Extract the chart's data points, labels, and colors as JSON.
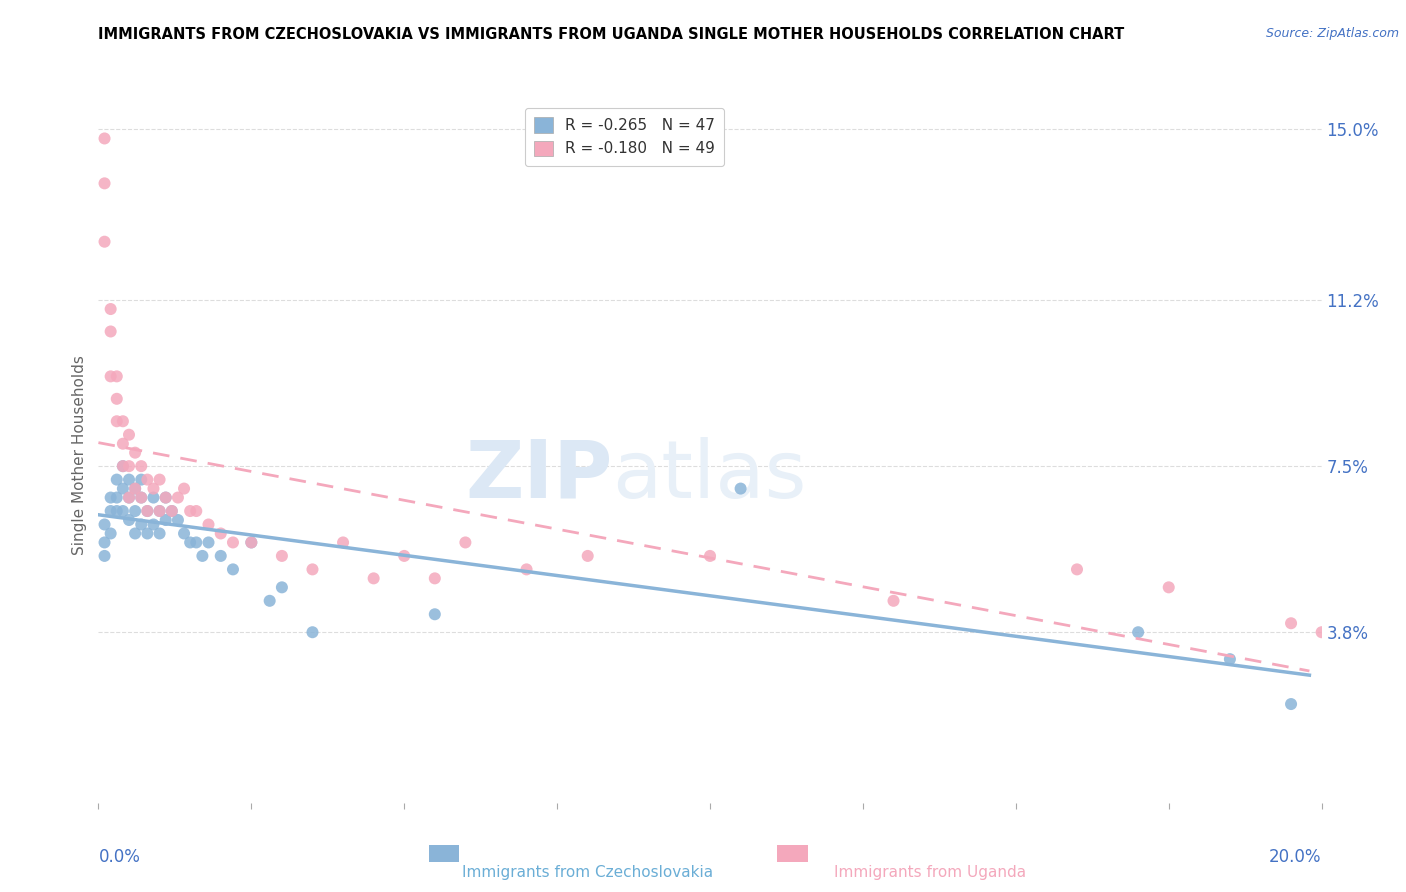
{
  "title": "IMMIGRANTS FROM CZECHOSLOVAKIA VS IMMIGRANTS FROM UGANDA SINGLE MOTHER HOUSEHOLDS CORRELATION CHART",
  "source": "Source: ZipAtlas.com",
  "ylabel": "Single Mother Households",
  "xlabel_blue": "Immigrants from Czechoslovakia",
  "xlabel_pink": "Immigrants from Uganda",
  "legend_blue_R": "R = -0.265",
  "legend_blue_N": "N = 47",
  "legend_pink_R": "R = -0.180",
  "legend_pink_N": "N = 49",
  "xlim": [
    0.0,
    0.2
  ],
  "ylim": [
    0.0,
    0.155
  ],
  "yticks": [
    0.038,
    0.075,
    0.112,
    0.15
  ],
  "ytick_labels": [
    "3.8%",
    "7.5%",
    "11.2%",
    "15.0%"
  ],
  "xticks": [
    0.0,
    0.025,
    0.05,
    0.075,
    0.1,
    0.125,
    0.15,
    0.175,
    0.2
  ],
  "xtick_labels_show": [
    "0.0%",
    "20.0%"
  ],
  "color_blue": "#8ab4d8",
  "color_pink": "#f4a8bc",
  "watermark_ZIP": "ZIP",
  "watermark_atlas": "atlas",
  "blue_scatter_x": [
    0.001,
    0.001,
    0.001,
    0.002,
    0.002,
    0.002,
    0.003,
    0.003,
    0.003,
    0.004,
    0.004,
    0.004,
    0.005,
    0.005,
    0.005,
    0.006,
    0.006,
    0.006,
    0.007,
    0.007,
    0.007,
    0.008,
    0.008,
    0.009,
    0.009,
    0.01,
    0.01,
    0.011,
    0.011,
    0.012,
    0.013,
    0.014,
    0.015,
    0.016,
    0.017,
    0.018,
    0.02,
    0.022,
    0.025,
    0.028,
    0.03,
    0.035,
    0.055,
    0.105,
    0.17,
    0.185,
    0.195
  ],
  "blue_scatter_y": [
    0.062,
    0.058,
    0.055,
    0.068,
    0.065,
    0.06,
    0.072,
    0.068,
    0.065,
    0.075,
    0.07,
    0.065,
    0.072,
    0.068,
    0.063,
    0.07,
    0.065,
    0.06,
    0.072,
    0.068,
    0.062,
    0.065,
    0.06,
    0.068,
    0.062,
    0.065,
    0.06,
    0.068,
    0.063,
    0.065,
    0.063,
    0.06,
    0.058,
    0.058,
    0.055,
    0.058,
    0.055,
    0.052,
    0.058,
    0.045,
    0.048,
    0.038,
    0.042,
    0.07,
    0.038,
    0.032,
    0.022
  ],
  "pink_scatter_x": [
    0.001,
    0.001,
    0.001,
    0.002,
    0.002,
    0.002,
    0.003,
    0.003,
    0.003,
    0.004,
    0.004,
    0.004,
    0.005,
    0.005,
    0.005,
    0.006,
    0.006,
    0.007,
    0.007,
    0.008,
    0.008,
    0.009,
    0.01,
    0.01,
    0.011,
    0.012,
    0.013,
    0.014,
    0.015,
    0.016,
    0.018,
    0.02,
    0.022,
    0.025,
    0.03,
    0.035,
    0.04,
    0.045,
    0.05,
    0.055,
    0.06,
    0.07,
    0.08,
    0.1,
    0.13,
    0.16,
    0.175,
    0.195,
    0.2
  ],
  "pink_scatter_y": [
    0.148,
    0.138,
    0.125,
    0.11,
    0.105,
    0.095,
    0.095,
    0.09,
    0.085,
    0.085,
    0.08,
    0.075,
    0.082,
    0.075,
    0.068,
    0.078,
    0.07,
    0.075,
    0.068,
    0.072,
    0.065,
    0.07,
    0.072,
    0.065,
    0.068,
    0.065,
    0.068,
    0.07,
    0.065,
    0.065,
    0.062,
    0.06,
    0.058,
    0.058,
    0.055,
    0.052,
    0.058,
    0.05,
    0.055,
    0.05,
    0.058,
    0.052,
    0.055,
    0.055,
    0.045,
    0.052,
    0.048,
    0.04,
    0.038
  ]
}
